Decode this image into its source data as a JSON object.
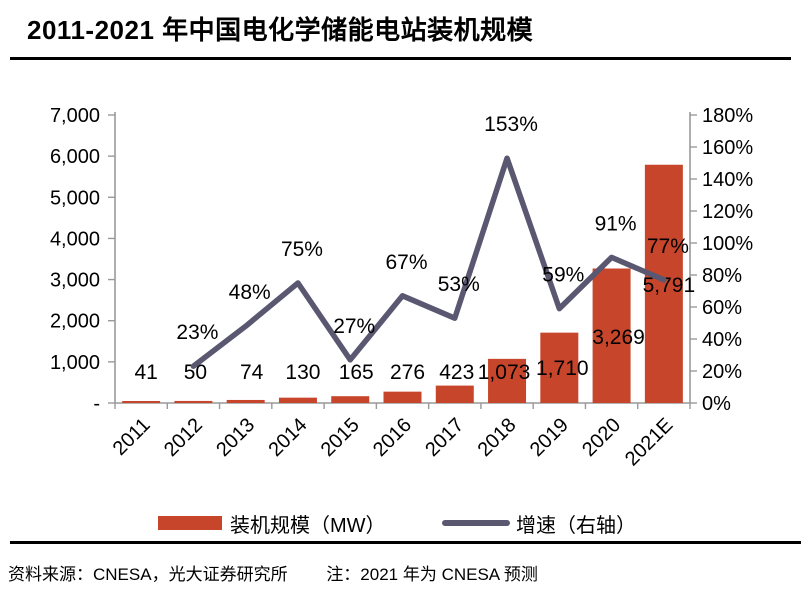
{
  "title": "2011-2021 年中国电化学储能电站装机规模",
  "legend": {
    "capacity_label": "装机规模（MW）",
    "growth_label": "增速（右轴）"
  },
  "footer": {
    "source": "资料来源：CNESA，光大证券研究所",
    "note": "注：2021 年为 CNESA 预测"
  },
  "colors": {
    "bar": "#C7462B",
    "line": "#5A5770",
    "axis": "#999999",
    "text": "#000000",
    "divider": "#000000"
  },
  "chart_data": {
    "type": "combo-bar-line",
    "title": "2011-2021 年中国电化学储能电站装机规模",
    "categories": [
      "2011",
      "2012",
      "2013",
      "2014",
      "2015",
      "2016",
      "2017",
      "2018",
      "2019",
      "2020",
      "2021E"
    ],
    "series": [
      {
        "name": "装机规模（MW）",
        "type": "bar",
        "axis": "left",
        "values": [
          41,
          50,
          74,
          130,
          165,
          276,
          423,
          1073,
          1710,
          3269,
          5791
        ],
        "labels": [
          "41",
          "50",
          "74",
          "130",
          "165",
          "276",
          "423",
          "1,073",
          "1,710",
          "3,269",
          "5,791"
        ],
        "label_dx": [
          5,
          2,
          6,
          5,
          6,
          5,
          2,
          -3,
          3,
          7,
          5
        ],
        "label_cy": [
          372,
          372,
          372,
          372,
          372,
          372,
          372,
          372,
          368,
          337,
          285
        ]
      },
      {
        "name": "增速（右轴）",
        "type": "line",
        "axis": "right",
        "values": [
          null,
          23,
          48,
          75,
          27,
          67,
          53,
          153,
          59,
          91,
          77
        ],
        "labels": [
          null,
          "23%",
          "48%",
          "75%",
          "27%",
          "67%",
          "53%",
          "153%",
          "59%",
          "91%",
          "77%"
        ],
        "label_dx": 4,
        "label_dy": -34
      }
    ],
    "left_axis": {
      "ticks": [
        "7,000",
        "6,000",
        "5,000",
        "4,000",
        "3,000",
        "2,000",
        "1,000",
        "-"
      ],
      "tick_values": [
        7000,
        6000,
        5000,
        4000,
        3000,
        2000,
        1000,
        0
      ],
      "min": 0,
      "max": 7000
    },
    "right_axis": {
      "ticks": [
        "180%",
        "160%",
        "140%",
        "120%",
        "100%",
        "80%",
        "60%",
        "40%",
        "20%",
        "0%"
      ],
      "tick_values": [
        180,
        160,
        140,
        120,
        100,
        80,
        60,
        40,
        20,
        0
      ],
      "min": 0,
      "max": 180
    },
    "grid": false,
    "legend_position": "bottom",
    "x_label_rotation": -45
  }
}
